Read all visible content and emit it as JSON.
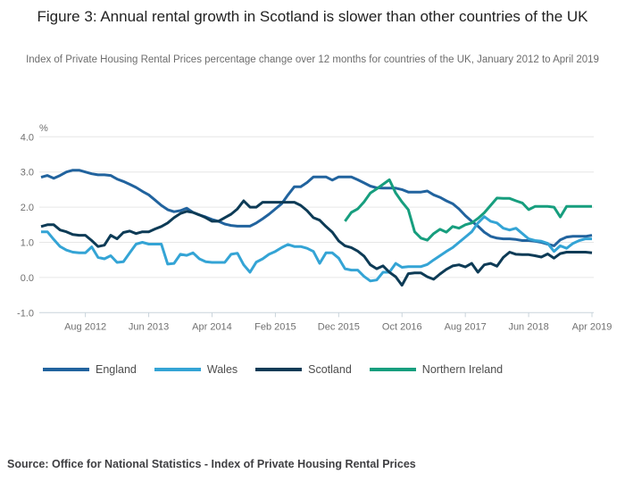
{
  "figure": {
    "title": "Figure 3: Annual rental growth in Scotland is slower than other countries of the UK",
    "subtitle": "Index of Private Housing Rental Prices percentage change over 12 months for countries of the UK, January 2012 to April 2019",
    "source": "Source: Office for National Statistics - Index of Private Housing Rental Prices"
  },
  "chart_data": {
    "type": "line",
    "title": "Figure 3: Annual rental growth in Scotland is slower than other countries of the UK",
    "xlabel": "",
    "ylabel": "%",
    "ylim": [
      -1.0,
      4.0
    ],
    "y_ticks": [
      "4.0",
      "3.0",
      "2.0",
      "1.0",
      "0.0",
      "-1.0"
    ],
    "grid": "horizontal",
    "legend_position": "bottom",
    "x_range": {
      "start": "Jan 2012",
      "end": "Apr 2019",
      "months": 88
    },
    "x_ticks": [
      {
        "label": "Aug 2012",
        "month_index": 7
      },
      {
        "label": "Jun 2013",
        "month_index": 17
      },
      {
        "label": "Apr 2014",
        "month_index": 27
      },
      {
        "label": "Feb 2015",
        "month_index": 37
      },
      {
        "label": "Dec 2015",
        "month_index": 47
      },
      {
        "label": "Oct 2016",
        "month_index": 57
      },
      {
        "label": "Aug 2017",
        "month_index": 67
      },
      {
        "label": "Jun 2018",
        "month_index": 77
      },
      {
        "label": "Apr 2019",
        "month_index": 87
      }
    ],
    "colors": {
      "grid": "#e6e6e6",
      "axis": "#c9d4db",
      "tick_text": "#707070"
    },
    "series": [
      {
        "name": "England",
        "color": "#21639e",
        "start_index": 0,
        "values": [
          2.85,
          2.9,
          2.82,
          2.9,
          3.0,
          3.05,
          3.05,
          3.0,
          2.95,
          2.92,
          2.92,
          2.9,
          2.8,
          2.73,
          2.65,
          2.56,
          2.45,
          2.35,
          2.2,
          2.05,
          1.93,
          1.87,
          1.9,
          1.97,
          1.85,
          1.78,
          1.72,
          1.65,
          1.6,
          1.52,
          1.48,
          1.46,
          1.46,
          1.46,
          1.55,
          1.67,
          1.8,
          1.95,
          2.1,
          2.35,
          2.58,
          2.58,
          2.7,
          2.86,
          2.86,
          2.86,
          2.77,
          2.86,
          2.86,
          2.86,
          2.78,
          2.69,
          2.6,
          2.55,
          2.54,
          2.54,
          2.54,
          2.5,
          2.43,
          2.43,
          2.43,
          2.46,
          2.35,
          2.28,
          2.18,
          2.1,
          1.95,
          1.76,
          1.6,
          1.46,
          1.29,
          1.17,
          1.12,
          1.1,
          1.1,
          1.08,
          1.05,
          1.05,
          1.03,
          1.0,
          0.95,
          0.9,
          1.07,
          1.15,
          1.17,
          1.17,
          1.17,
          1.2
        ]
      },
      {
        "name": "Wales",
        "color": "#34a4d5",
        "start_index": 0,
        "values": [
          1.3,
          1.3,
          1.08,
          0.88,
          0.78,
          0.72,
          0.7,
          0.7,
          0.87,
          0.57,
          0.53,
          0.62,
          0.43,
          0.45,
          0.7,
          0.95,
          1.0,
          0.95,
          0.95,
          0.95,
          0.38,
          0.4,
          0.66,
          0.63,
          0.7,
          0.53,
          0.45,
          0.43,
          0.43,
          0.43,
          0.66,
          0.69,
          0.36,
          0.15,
          0.44,
          0.53,
          0.66,
          0.74,
          0.85,
          0.94,
          0.88,
          0.88,
          0.83,
          0.74,
          0.4,
          0.7,
          0.7,
          0.55,
          0.25,
          0.21,
          0.21,
          0.03,
          -0.1,
          -0.07,
          0.15,
          0.15,
          0.4,
          0.29,
          0.31,
          0.31,
          0.31,
          0.37,
          0.5,
          0.62,
          0.74,
          0.85,
          1.0,
          1.15,
          1.3,
          1.55,
          1.73,
          1.6,
          1.55,
          1.4,
          1.35,
          1.4,
          1.25,
          1.1,
          1.05,
          1.03,
          0.97,
          0.74,
          0.9,
          0.83,
          0.97,
          1.05,
          1.1,
          1.1
        ]
      },
      {
        "name": "Scotland",
        "color": "#0d3b56",
        "start_index": 0,
        "values": [
          1.45,
          1.5,
          1.5,
          1.35,
          1.3,
          1.22,
          1.2,
          1.2,
          1.05,
          0.88,
          0.92,
          1.2,
          1.1,
          1.28,
          1.32,
          1.25,
          1.3,
          1.3,
          1.38,
          1.45,
          1.55,
          1.7,
          1.82,
          1.88,
          1.85,
          1.78,
          1.7,
          1.6,
          1.6,
          1.7,
          1.8,
          1.95,
          2.18,
          2.0,
          2.0,
          2.14,
          2.14,
          2.14,
          2.14,
          2.14,
          2.14,
          2.05,
          1.9,
          1.7,
          1.63,
          1.45,
          1.29,
          1.04,
          0.9,
          0.85,
          0.75,
          0.61,
          0.36,
          0.25,
          0.33,
          0.15,
          0.02,
          -0.22,
          0.11,
          0.13,
          0.13,
          0.02,
          -0.05,
          0.1,
          0.23,
          0.33,
          0.36,
          0.3,
          0.4,
          0.15,
          0.36,
          0.4,
          0.32,
          0.57,
          0.72,
          0.66,
          0.65,
          0.65,
          0.62,
          0.58,
          0.67,
          0.55,
          0.68,
          0.72,
          0.72,
          0.72,
          0.72,
          0.7
        ]
      },
      {
        "name": "Northern Ireland",
        "color": "#179e7e",
        "start_index": 48,
        "values": [
          1.6,
          1.85,
          1.95,
          2.15,
          2.4,
          2.52,
          2.65,
          2.78,
          2.4,
          2.15,
          1.93,
          1.3,
          1.12,
          1.06,
          1.25,
          1.37,
          1.29,
          1.45,
          1.4,
          1.5,
          1.55,
          1.68,
          1.84,
          2.05,
          2.26,
          2.25,
          2.25,
          2.18,
          2.12,
          1.93,
          2.02,
          2.02,
          2.02,
          2.0,
          1.72,
          2.02,
          2.02,
          2.02,
          2.02,
          2.02
        ]
      }
    ]
  }
}
